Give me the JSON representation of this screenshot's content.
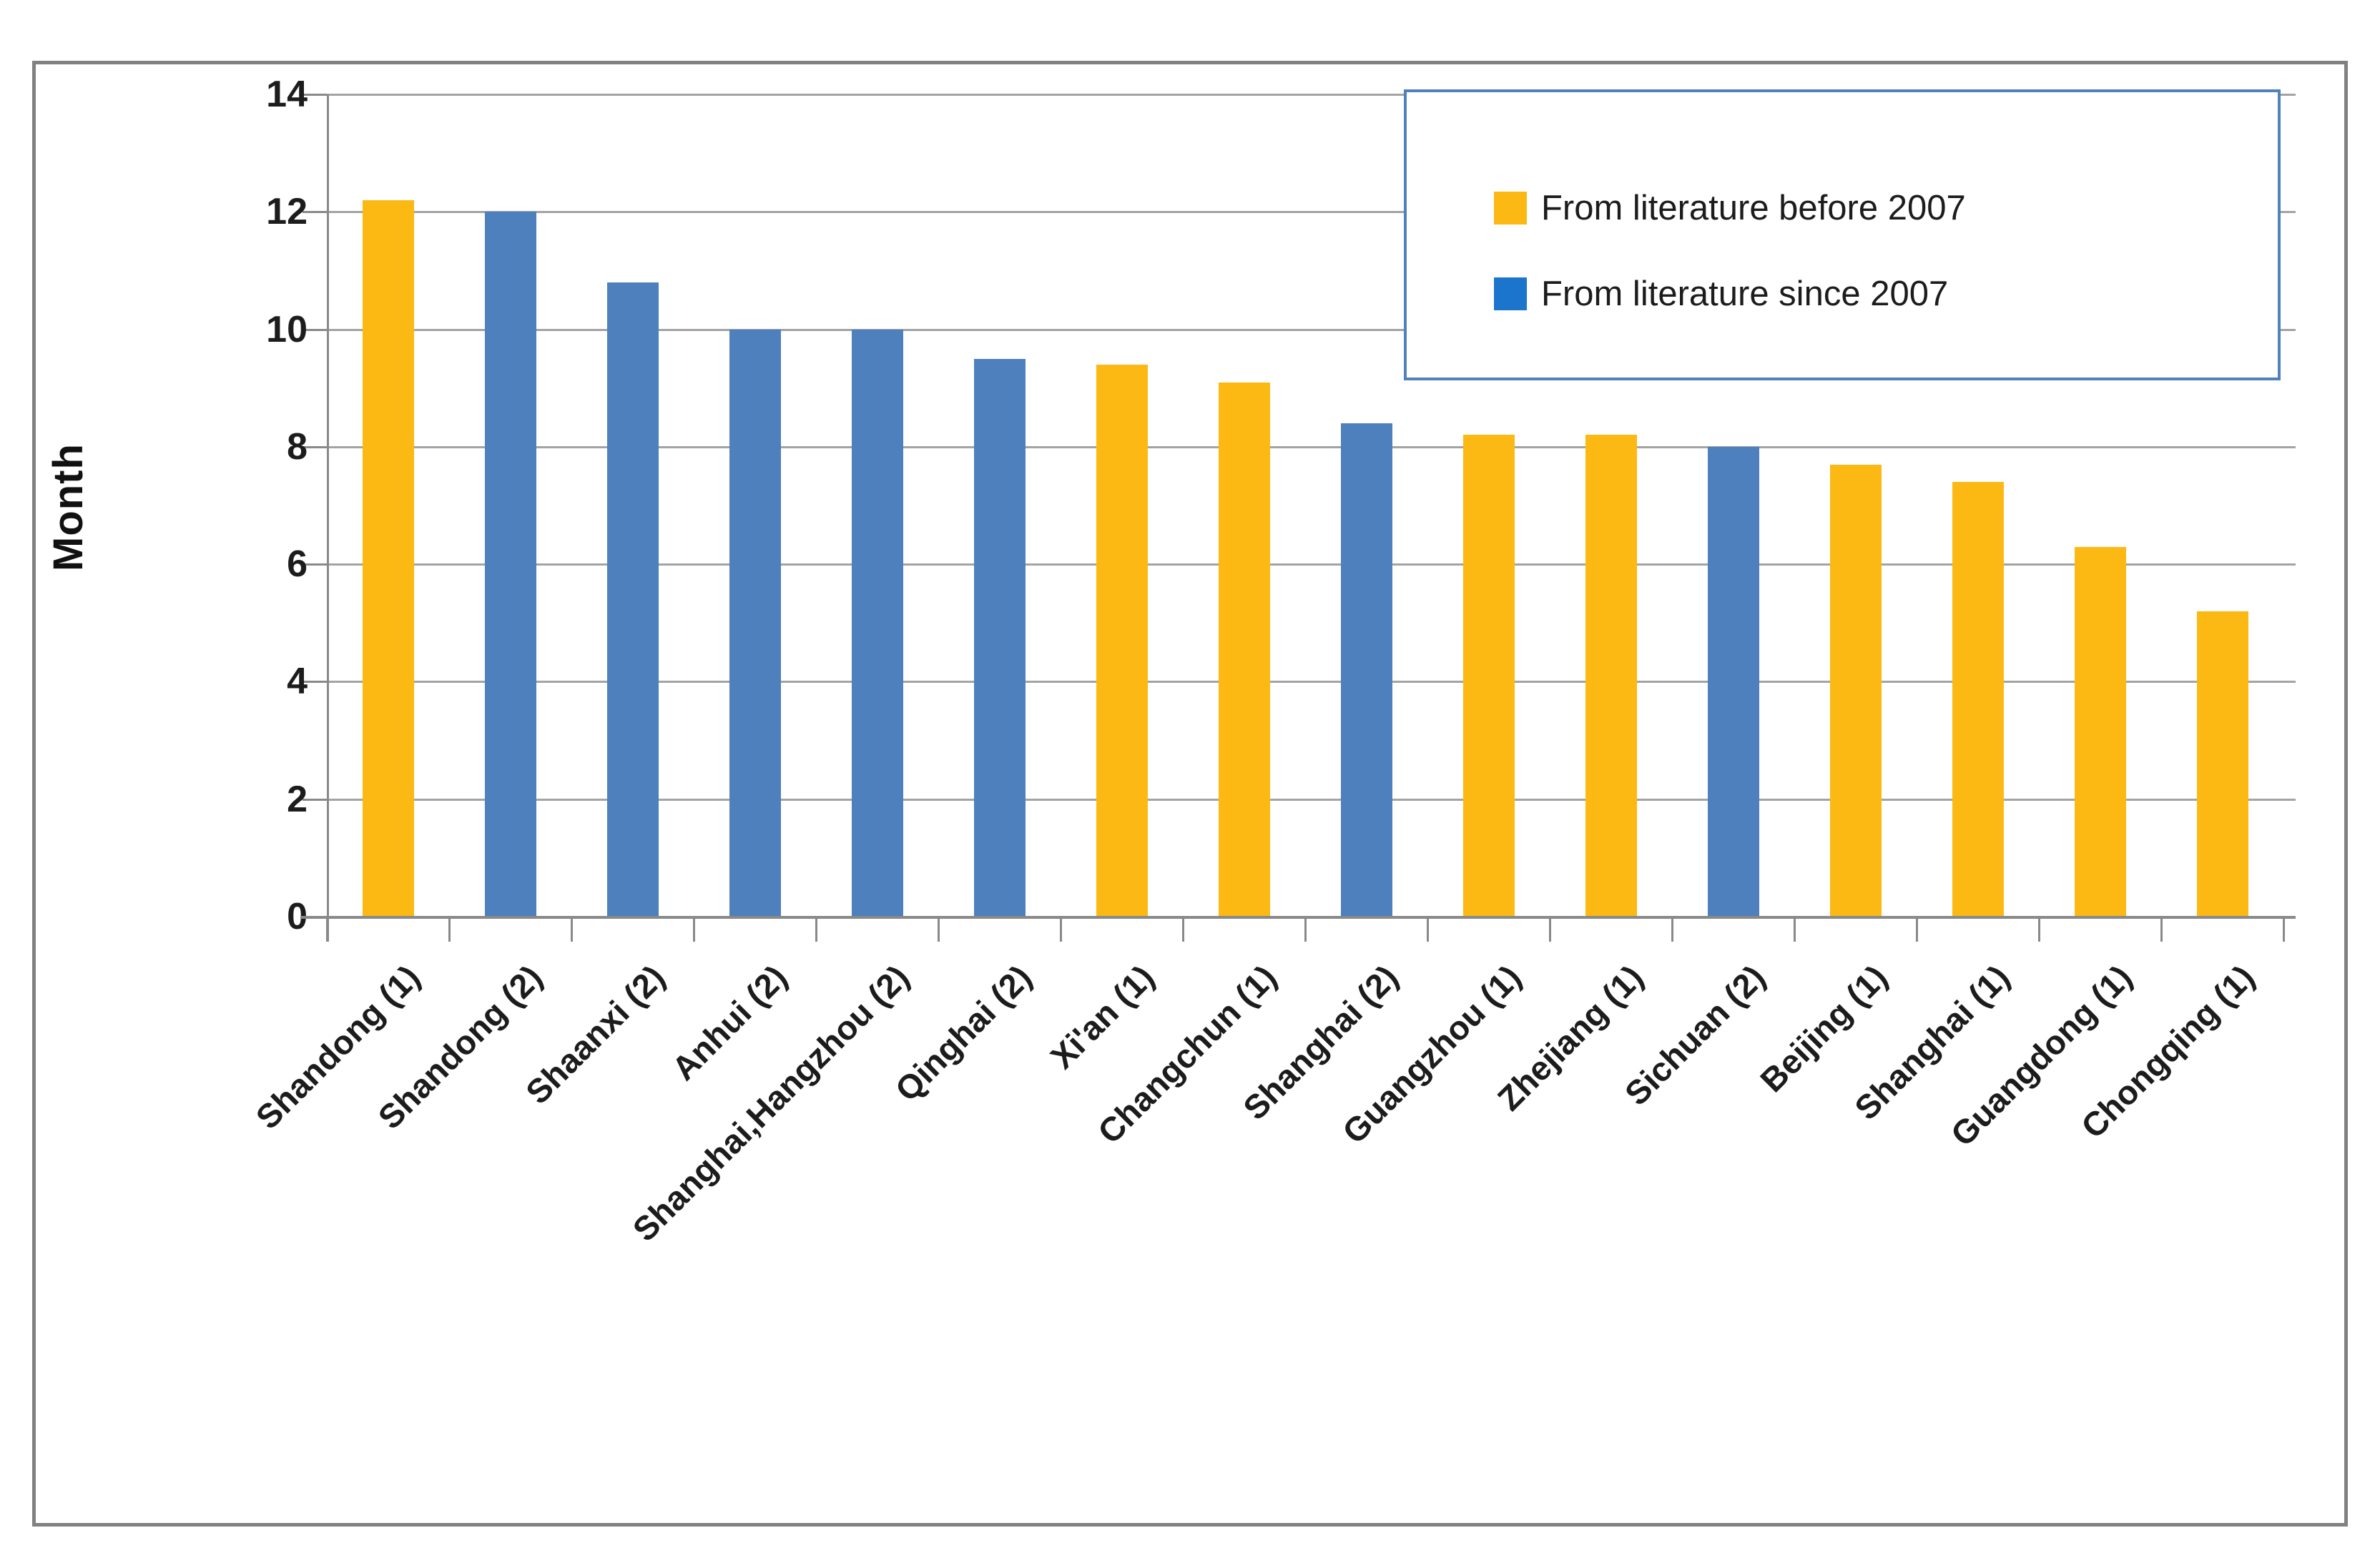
{
  "chart_data": {
    "type": "bar",
    "title": "",
    "xlabel": "",
    "ylabel": "Month",
    "ylim": [
      0,
      14
    ],
    "yticks": [
      0,
      2,
      4,
      6,
      8,
      10,
      12,
      14
    ],
    "grid": "horizontal",
    "legend_position": "top-right",
    "series": [
      {
        "name": "From literature before 2007",
        "color": "#FDB913",
        "swatch_color": "#FDB913"
      },
      {
        "name": "From literature since 2007",
        "color": "#4D80BC",
        "swatch_color": "#1C75CD"
      }
    ],
    "bars": [
      {
        "category": "Shandong (1)",
        "value": 12.2,
        "series": 0
      },
      {
        "category": "Shandong (2)",
        "value": 12.0,
        "series": 1
      },
      {
        "category": "Shaanxi (2)",
        "value": 10.8,
        "series": 1
      },
      {
        "category": "Anhui (2)",
        "value": 10.0,
        "series": 1
      },
      {
        "category": "Shanghai,Hangzhou (2)",
        "value": 10.0,
        "series": 1
      },
      {
        "category": "Qinghai (2)",
        "value": 9.5,
        "series": 1
      },
      {
        "category": "Xi'an (1)",
        "value": 9.4,
        "series": 0
      },
      {
        "category": "Changchun (1)",
        "value": 9.1,
        "series": 0
      },
      {
        "category": "Shanghai (2)",
        "value": 8.4,
        "series": 1
      },
      {
        "category": "Guangzhou (1)",
        "value": 8.2,
        "series": 0
      },
      {
        "category": "Zhejiang (1)",
        "value": 8.2,
        "series": 0
      },
      {
        "category": "Sichuan (2)",
        "value": 8.0,
        "series": 1
      },
      {
        "category": "Beijing (1)",
        "value": 7.7,
        "series": 0
      },
      {
        "category": "Shanghai (1)",
        "value": 7.4,
        "series": 0
      },
      {
        "category": "Guangdong (1)",
        "value": 6.3,
        "series": 0
      },
      {
        "category": "Chongqing (1)",
        "value": 5.2,
        "series": 0
      }
    ]
  },
  "colors": {
    "figure_border": "#818181",
    "gridline": "#A3A3A3",
    "axis_line": "#898989",
    "legend_border": "#4F81BD",
    "text": "#1C1C1C",
    "background": "#FFFFFF"
  }
}
